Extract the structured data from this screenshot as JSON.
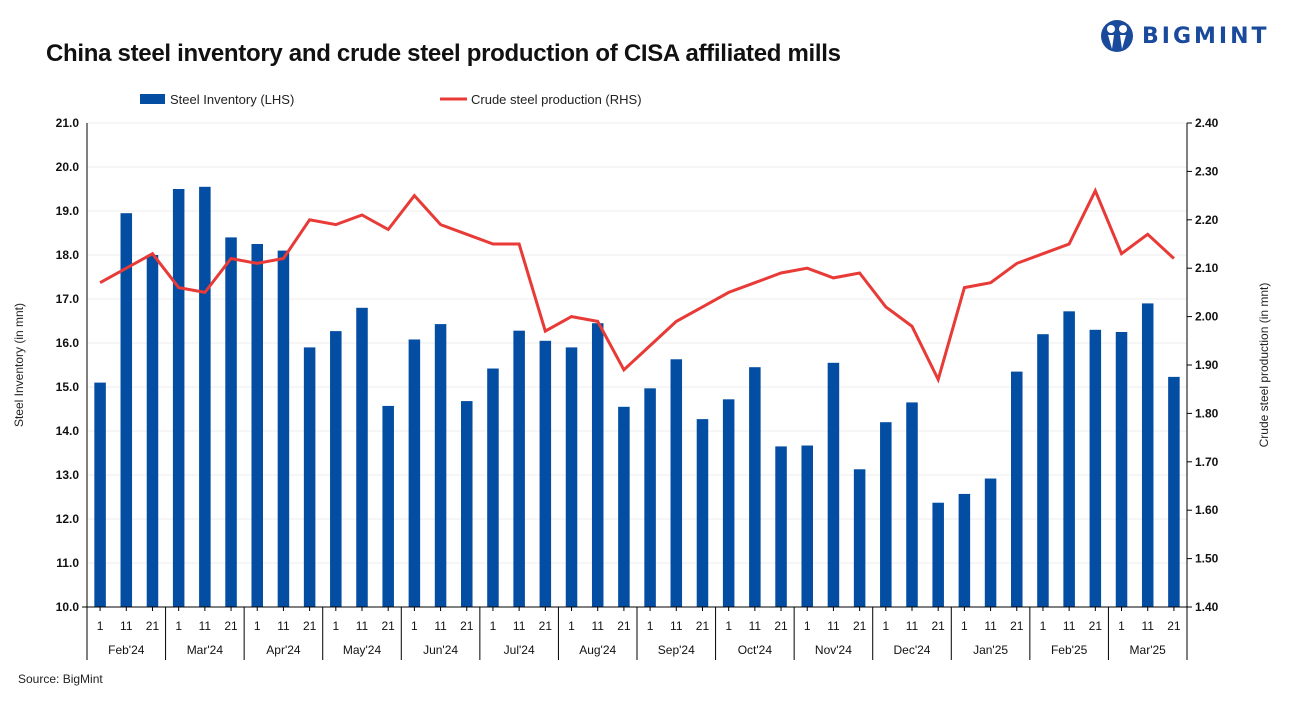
{
  "brand": {
    "name": "BIGMINT"
  },
  "source": "Source: BigMint",
  "colors": {
    "bar": "#034ea2",
    "line": "#e83a36",
    "grid": "#ececec",
    "axis": "#000000"
  },
  "chart_data": {
    "type": "bar+line",
    "title": "China steel inventory and crude steel production of CISA affiliated mills",
    "legend": {
      "placement": "top",
      "entries": [
        "Steel Inventory (LHS)",
        "Crude steel production (RHS)"
      ]
    },
    "ylabel_left": "Steel Inventory (in mnt)",
    "ylabel_right": "Crude steel production (in mnt)",
    "ylim_left": [
      10.0,
      21.0
    ],
    "ylim_right": [
      1.4,
      2.4
    ],
    "yticks_left": [
      "10.0",
      "11.0",
      "12.0",
      "13.0",
      "14.0",
      "15.0",
      "16.0",
      "17.0",
      "18.0",
      "19.0",
      "20.0",
      "21.0"
    ],
    "yticks_right": [
      "1.40",
      "1.50",
      "1.60",
      "1.70",
      "1.80",
      "1.90",
      "2.00",
      "2.10",
      "2.20",
      "2.30",
      "2.40"
    ],
    "grid": true,
    "months": [
      "Feb'24",
      "Mar'24",
      "Apr'24",
      "May'24",
      "Jun'24",
      "Jul'24",
      "Aug'24",
      "Sep'24",
      "Oct'24",
      "Nov'24",
      "Dec'24",
      "Jan'25",
      "Feb'25",
      "Mar'25"
    ],
    "days": [
      "1",
      "11",
      "21"
    ],
    "series": [
      {
        "name": "Steel Inventory (LHS)",
        "type": "bar",
        "axis": "left",
        "values": [
          15.1,
          18.95,
          18.0,
          19.5,
          19.55,
          18.4,
          18.25,
          18.1,
          15.9,
          16.27,
          16.8,
          14.57,
          16.08,
          16.43,
          14.68,
          15.42,
          16.28,
          16.05,
          15.9,
          16.45,
          14.55,
          14.97,
          15.63,
          14.27,
          14.72,
          15.45,
          13.65,
          13.67,
          15.55,
          13.13,
          14.2,
          14.65,
          12.37,
          12.57,
          12.92,
          15.35,
          16.2,
          16.72,
          16.3,
          16.25,
          16.9,
          15.23
        ]
      },
      {
        "name": "Crude steel production (RHS)",
        "type": "line",
        "axis": "right",
        "values": [
          2.07,
          2.1,
          2.13,
          2.06,
          2.05,
          2.12,
          2.11,
          2.12,
          2.2,
          2.19,
          2.21,
          2.18,
          2.25,
          2.19,
          2.17,
          2.15,
          2.15,
          1.97,
          2.0,
          1.99,
          1.89,
          1.94,
          1.99,
          2.02,
          2.05,
          2.07,
          2.09,
          2.1,
          2.08,
          2.09,
          2.02,
          1.98,
          1.87,
          2.06,
          2.07,
          2.11,
          2.13,
          2.15,
          2.26,
          2.13,
          2.17,
          2.12
        ]
      }
    ]
  }
}
